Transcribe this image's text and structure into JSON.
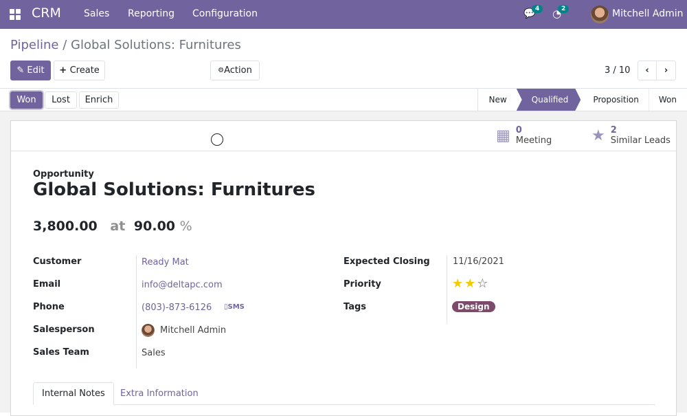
{
  "navbar": {
    "app": "CRM",
    "menu": [
      "Sales",
      "Reporting",
      "Configuration"
    ],
    "messages_count": "4",
    "activities_count": "2",
    "user": "Mitchell Admin"
  },
  "breadcrumb": {
    "parent": "Pipeline",
    "separator": "/",
    "current": "Global Solutions: Furnitures"
  },
  "toolbar": {
    "edit": "Edit",
    "create": "Create",
    "action": "Action",
    "pager": "3 / 10"
  },
  "status_buttons": [
    "Won",
    "Lost",
    "Enrich"
  ],
  "stages": [
    {
      "label": "New",
      "active": false
    },
    {
      "label": "Qualified",
      "active": true
    },
    {
      "label": "Proposition",
      "active": false
    },
    {
      "label": "Won",
      "active": false
    }
  ],
  "smart_buttons": [
    {
      "count": "0",
      "label": "Meeting",
      "icon": "calendar-icon"
    },
    {
      "count": "2",
      "label": "Similar Leads",
      "icon": "star-icon"
    }
  ],
  "record": {
    "type": "Opportunity",
    "name": "Global Solutions: Furnitures",
    "revenue": "3,800.00",
    "at": "at",
    "probability": "90.00",
    "percent": "%"
  },
  "fields_left": [
    {
      "label": "Customer",
      "value": "Ready Mat"
    },
    {
      "label": "Email",
      "value": "info@deltapc.com"
    },
    {
      "label": "Phone",
      "value": "(803)-873-6126",
      "extra": "SMS"
    },
    {
      "label": "Salesperson",
      "value": "Mitchell Admin"
    },
    {
      "label": "Sales Team",
      "value": "Sales"
    }
  ],
  "fields_right": {
    "closing_label": "Expected Closing",
    "closing": "11/16/2021",
    "priority_label": "Priority",
    "priority_value": 2,
    "priority_max": 3,
    "tags_label": "Tags",
    "tag": "Design",
    "tag_color": "#7c4a6a"
  },
  "tabs": [
    "Internal Notes",
    "Extra Information"
  ],
  "colors": {
    "brand": "#71639e",
    "star": "#f3cc00",
    "badge": "#00848a"
  }
}
